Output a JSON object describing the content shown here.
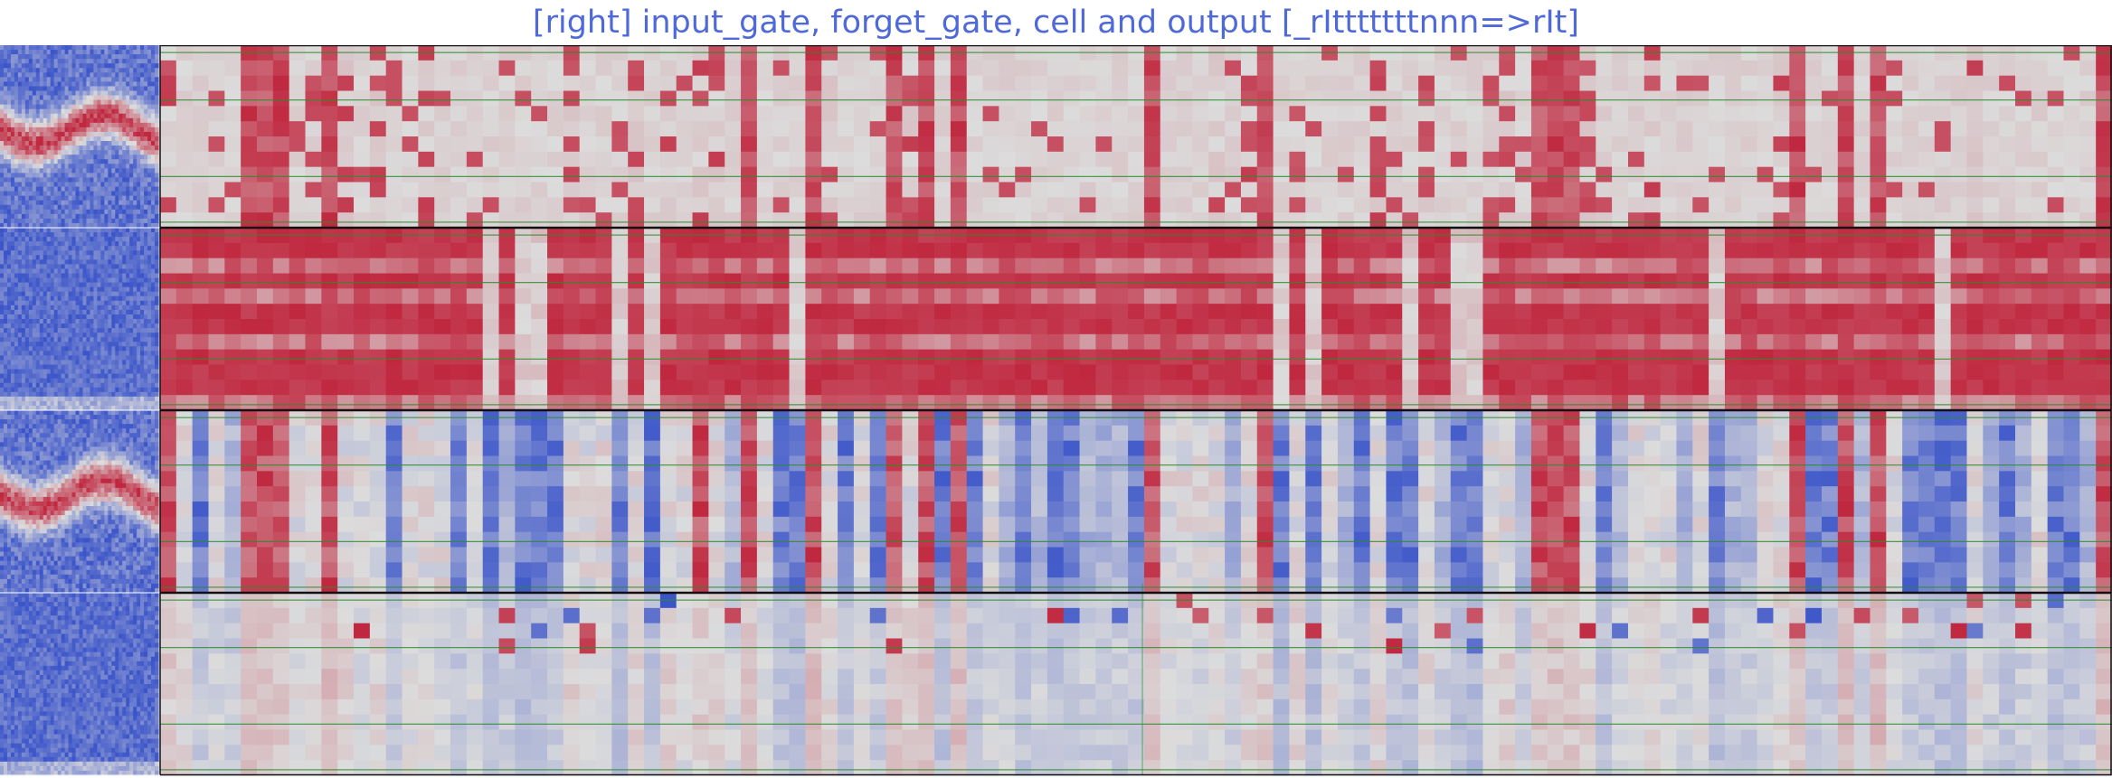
{
  "title": "[right] input_gate, forget_gate, cell and output [_rItttttttnnn=>rIt]",
  "colors": {
    "title": "#4f6ad8",
    "neutral": "#dcdcdc",
    "positive_max": "#c0283f",
    "negative_max": "#3a54c9",
    "grid_line": "#2d8a2d",
    "frame": "#111111"
  },
  "chart_data": {
    "type": "heatmap",
    "title": "[right] input_gate, forget_gate, cell and output [_rItttttttnnn=>rIt]",
    "xlabel": "",
    "ylabel": "",
    "colormap": "coolwarm",
    "panels": [
      {
        "name": "input_gate",
        "range": [
          -1,
          1
        ],
        "dominant": "sparse positive columns"
      },
      {
        "name": "forget_gate",
        "range": [
          -1,
          1
        ],
        "dominant": "mostly saturated positive"
      },
      {
        "name": "cell",
        "range": [
          -1,
          1
        ],
        "dominant": "mixed positive / negative columns"
      },
      {
        "name": "output",
        "range": [
          -1,
          1
        ],
        "dominant": "weak values, scattered extremes"
      }
    ],
    "x_cells": 121,
    "y_cells_per_panel": 12,
    "grid": true,
    "legend": "none"
  }
}
